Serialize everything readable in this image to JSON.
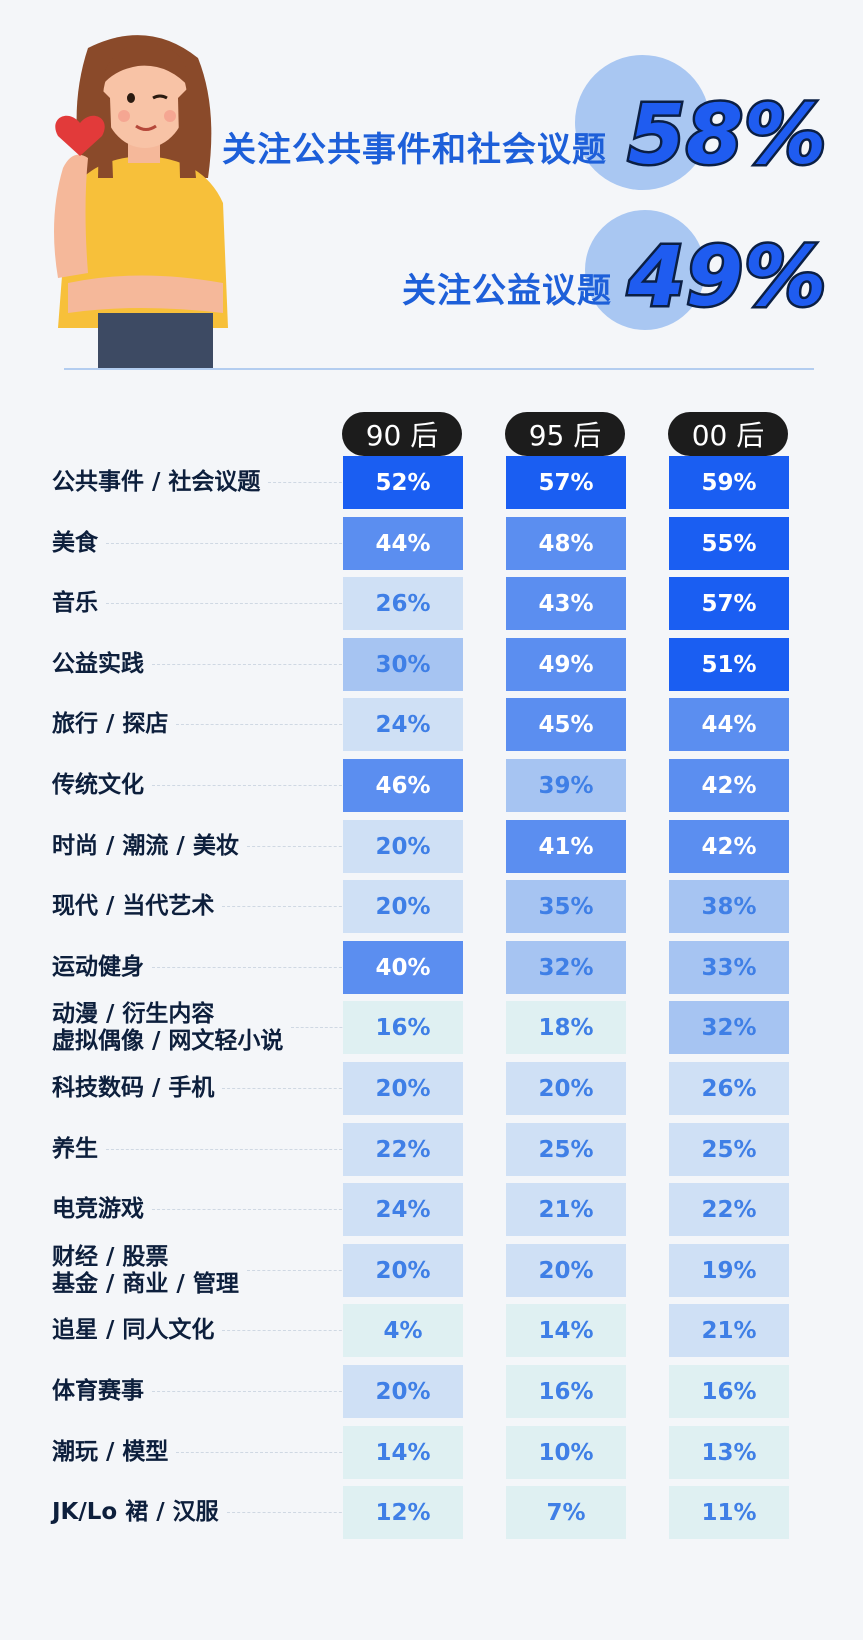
{
  "headline": {
    "stat1": {
      "label": "关注公共事件和社会议题",
      "value": "58%"
    },
    "stat2": {
      "label": "关注公益议题",
      "value": "49%"
    }
  },
  "columns": [
    "90 后",
    "95 后",
    "00 后"
  ],
  "chart_data": {
    "type": "table",
    "columns": [
      "90 后",
      "95 后",
      "00 后"
    ],
    "rows": [
      {
        "label": "公共事件 / 社会议题",
        "values": [
          52,
          57,
          59
        ],
        "display": [
          "52%",
          "57%",
          "59%"
        ]
      },
      {
        "label": "美食",
        "values": [
          44,
          48,
          55
        ],
        "display": [
          "44%",
          "48%",
          "55%"
        ]
      },
      {
        "label": "音乐",
        "values": [
          26,
          43,
          57
        ],
        "display": [
          "26%",
          "43%",
          "57%"
        ]
      },
      {
        "label": "公益实践",
        "values": [
          30,
          49,
          51
        ],
        "display": [
          "30%",
          "49%",
          "51%"
        ]
      },
      {
        "label": "旅行 / 探店",
        "values": [
          24,
          45,
          44
        ],
        "display": [
          "24%",
          "45%",
          "44%"
        ]
      },
      {
        "label": "传统文化",
        "values": [
          46,
          39,
          42
        ],
        "display": [
          "46%",
          "39%",
          "42%"
        ]
      },
      {
        "label": "时尚 / 潮流 / 美妆",
        "values": [
          20,
          41,
          42
        ],
        "display": [
          "20%",
          "41%",
          "42%"
        ]
      },
      {
        "label": "现代 / 当代艺术",
        "values": [
          20,
          35,
          38
        ],
        "display": [
          "20%",
          "35%",
          "38%"
        ]
      },
      {
        "label": "运动健身",
        "values": [
          40,
          32,
          33
        ],
        "display": [
          "40%",
          "32%",
          "33%"
        ]
      },
      {
        "label": "动漫 / 衍生内容\n虚拟偶像 / 网文轻小说",
        "values": [
          16,
          18,
          32
        ],
        "display": [
          "16%",
          "18%",
          "32%"
        ]
      },
      {
        "label": "科技数码 / 手机",
        "values": [
          20,
          20,
          26
        ],
        "display": [
          "20%",
          "20%",
          "26%"
        ]
      },
      {
        "label": "养生",
        "values": [
          22,
          25,
          25
        ],
        "display": [
          "22%",
          "25%",
          "25%"
        ]
      },
      {
        "label": "电竞游戏",
        "values": [
          24,
          21,
          22
        ],
        "display": [
          "24%",
          "21%",
          "22%"
        ]
      },
      {
        "label": "财经 / 股票\n基金 / 商业 / 管理",
        "values": [
          20,
          20,
          19
        ],
        "display": [
          "20%",
          "20%",
          "19%"
        ]
      },
      {
        "label": "追星 / 同人文化",
        "values": [
          4,
          14,
          21
        ],
        "display": [
          "4%",
          "14%",
          "21%"
        ]
      },
      {
        "label": "体育赛事",
        "values": [
          20,
          16,
          16
        ],
        "display": [
          "20%",
          "16%",
          "16%"
        ]
      },
      {
        "label": "潮玩 / 模型",
        "values": [
          14,
          10,
          13
        ],
        "display": [
          "14%",
          "10%",
          "13%"
        ]
      },
      {
        "label": "JK/Lo 裙 / 汉服",
        "values": [
          12,
          7,
          11
        ],
        "display": [
          "12%",
          "7%",
          "11%"
        ]
      }
    ]
  },
  "colors": {
    "scale_darkest": "#1a5ef2",
    "scale_dark": "#5b8ef0",
    "scale_mid": "#a6c4f2",
    "scale_light": "#cfe0f5",
    "scale_lightest": "#dff0f2",
    "text_dark_cell": "#ffffff",
    "text_light_cell": "#3f7fe6"
  }
}
